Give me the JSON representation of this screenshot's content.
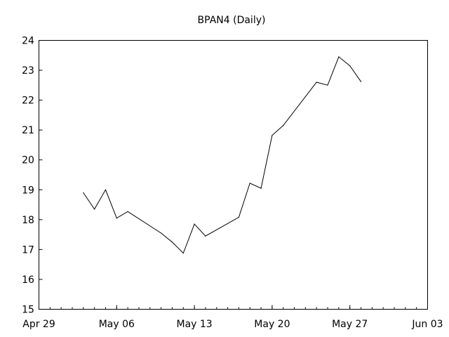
{
  "chart_data": {
    "type": "line",
    "title": "BPAN4 (Daily)",
    "xlabel": "",
    "ylabel": "",
    "ylim": [
      15,
      24
    ],
    "yticks": [
      15,
      16,
      17,
      18,
      19,
      20,
      21,
      22,
      23,
      24
    ],
    "xlim": [
      "2013-04-29",
      "2013-06-03"
    ],
    "xticks": [
      {
        "date": "2013-04-29",
        "label": "Apr 29"
      },
      {
        "date": "2013-05-06",
        "label": "May 06"
      },
      {
        "date": "2013-05-13",
        "label": "May 13"
      },
      {
        "date": "2013-05-20",
        "label": "May 20"
      },
      {
        "date": "2013-05-27",
        "label": "May 27"
      },
      {
        "date": "2013-06-03",
        "label": "Jun 03"
      }
    ],
    "grid": false,
    "series": [
      {
        "points": [
          {
            "x": "2013-05-03",
            "y": 18.9
          },
          {
            "x": "2013-05-04",
            "y": 18.35
          },
          {
            "x": "2013-05-05",
            "y": 19.0
          },
          {
            "x": "2013-05-06",
            "y": 18.05
          },
          {
            "x": "2013-05-07",
            "y": 18.27
          },
          {
            "x": "2013-05-10",
            "y": 17.55
          },
          {
            "x": "2013-05-11",
            "y": 17.25
          },
          {
            "x": "2013-05-12",
            "y": 16.88
          },
          {
            "x": "2013-05-13",
            "y": 17.85
          },
          {
            "x": "2013-05-14",
            "y": 17.45
          },
          {
            "x": "2013-05-17",
            "y": 18.08
          },
          {
            "x": "2013-05-18",
            "y": 19.22
          },
          {
            "x": "2013-05-19",
            "y": 19.05
          },
          {
            "x": "2013-05-20",
            "y": 20.82
          },
          {
            "x": "2013-05-21",
            "y": 21.15
          },
          {
            "x": "2013-05-24",
            "y": 22.6
          },
          {
            "x": "2013-05-25",
            "y": 22.5
          },
          {
            "x": "2013-05-26",
            "y": 23.45
          },
          {
            "x": "2013-05-27",
            "y": 23.15
          },
          {
            "x": "2013-05-28",
            "y": 22.62
          }
        ]
      }
    ]
  }
}
